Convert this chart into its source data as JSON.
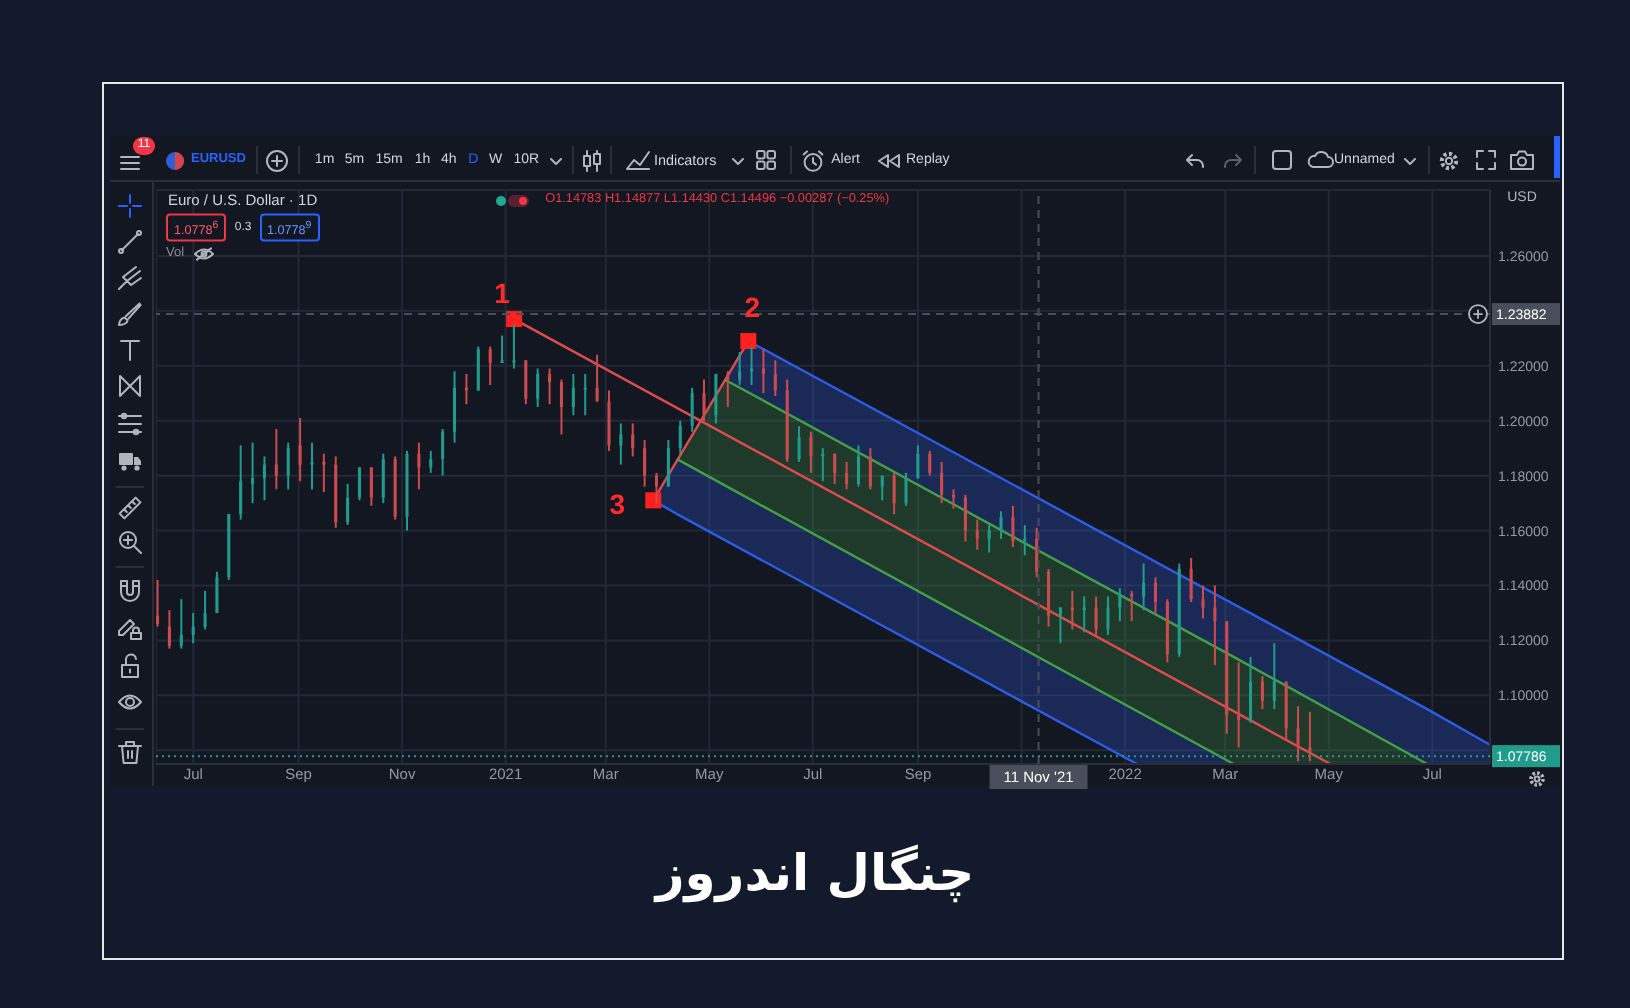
{
  "chart_data": {
    "type": "candlestick",
    "title": "چنگال اندروز",
    "subtitle": "Euro / U.S. Dollar · 1D",
    "ylabel": "USD",
    "x": [
      "2020-06-10",
      "2020-06-17",
      "2020-06-24",
      "2020-07-01",
      "2020-07-08",
      "2020-07-15",
      "2020-07-22",
      "2020-07-29",
      "2020-08-05",
      "2020-08-12",
      "2020-08-19",
      "2020-08-26",
      "2020-09-02",
      "2020-09-09",
      "2020-09-16",
      "2020-09-23",
      "2020-09-30",
      "2020-10-07",
      "2020-10-14",
      "2020-10-21",
      "2020-10-28",
      "2020-11-04",
      "2020-11-11",
      "2020-11-18",
      "2020-11-25",
      "2020-12-02",
      "2020-12-09",
      "2020-12-16",
      "2020-12-23",
      "2020-12-30",
      "2021-01-06",
      "2021-01-13",
      "2021-01-20",
      "2021-01-27",
      "2021-02-03",
      "2021-02-10",
      "2021-02-17",
      "2021-02-24",
      "2021-03-03",
      "2021-03-10",
      "2021-03-17",
      "2021-03-24",
      "2021-03-31",
      "2021-04-07",
      "2021-04-14",
      "2021-04-21",
      "2021-04-28",
      "2021-05-05",
      "2021-05-12",
      "2021-05-19",
      "2021-05-26",
      "2021-06-02",
      "2021-06-09",
      "2021-06-16",
      "2021-06-23",
      "2021-06-30",
      "2021-07-07",
      "2021-07-14",
      "2021-07-21",
      "2021-07-28",
      "2021-08-04",
      "2021-08-11",
      "2021-08-18",
      "2021-08-25",
      "2021-09-01",
      "2021-09-08",
      "2021-09-15",
      "2021-09-22",
      "2021-09-29",
      "2021-10-06",
      "2021-10-13",
      "2021-10-20",
      "2021-10-27",
      "2021-11-03",
      "2021-11-10",
      "2021-11-17",
      "2021-11-24",
      "2021-12-01",
      "2021-12-08",
      "2021-12-15",
      "2021-12-22",
      "2021-12-29",
      "2022-01-05",
      "2022-01-12",
      "2022-01-19",
      "2022-01-26",
      "2022-02-02",
      "2022-02-09",
      "2022-02-16",
      "2022-02-23",
      "2022-03-02",
      "2022-03-09",
      "2022-03-16",
      "2022-03-23",
      "2022-03-30",
      "2022-04-06",
      "2022-04-13",
      "2022-04-20"
    ],
    "ohlc": [
      [
        1.129,
        1.142,
        1.125,
        1.126
      ],
      [
        1.125,
        1.131,
        1.117,
        1.118
      ],
      [
        1.118,
        1.135,
        1.117,
        1.122
      ],
      [
        1.122,
        1.13,
        1.119,
        1.125
      ],
      [
        1.125,
        1.138,
        1.124,
        1.13
      ],
      [
        1.13,
        1.145,
        1.13,
        1.143
      ],
      [
        1.143,
        1.166,
        1.142,
        1.166
      ],
      [
        1.166,
        1.191,
        1.164,
        1.178
      ],
      [
        1.177,
        1.192,
        1.17,
        1.179
      ],
      [
        1.179,
        1.187,
        1.171,
        1.184
      ],
      [
        1.184,
        1.197,
        1.175,
        1.18
      ],
      [
        1.18,
        1.192,
        1.175,
        1.19
      ],
      [
        1.191,
        1.201,
        1.178,
        1.184
      ],
      [
        1.184,
        1.192,
        1.175,
        1.185
      ],
      [
        1.185,
        1.188,
        1.174,
        1.184
      ],
      [
        1.184,
        1.187,
        1.161,
        1.163
      ],
      [
        1.163,
        1.177,
        1.162,
        1.172
      ],
      [
        1.172,
        1.183,
        1.171,
        1.183
      ],
      [
        1.183,
        1.183,
        1.169,
        1.172
      ],
      [
        1.172,
        1.188,
        1.17,
        1.186
      ],
      [
        1.186,
        1.187,
        1.164,
        1.165
      ],
      [
        1.165,
        1.189,
        1.16,
        1.188
      ],
      [
        1.188,
        1.192,
        1.175,
        1.183
      ],
      [
        1.183,
        1.189,
        1.181,
        1.186
      ],
      [
        1.186,
        1.197,
        1.18,
        1.196
      ],
      [
        1.196,
        1.218,
        1.192,
        1.212
      ],
      [
        1.212,
        1.217,
        1.206,
        1.211
      ],
      [
        1.211,
        1.227,
        1.211,
        1.226
      ],
      [
        1.226,
        1.227,
        1.213,
        1.221
      ],
      [
        1.221,
        1.231,
        1.221,
        1.222
      ],
      [
        1.222,
        1.235,
        1.219,
        1.222
      ],
      [
        1.222,
        1.222,
        1.206,
        1.208
      ],
      [
        1.208,
        1.219,
        1.205,
        1.217
      ],
      [
        1.217,
        1.219,
        1.206,
        1.214
      ],
      [
        1.214,
        1.215,
        1.195,
        1.205
      ],
      [
        1.205,
        1.217,
        1.202,
        1.212
      ],
      [
        1.212,
        1.217,
        1.202,
        1.212
      ],
      [
        1.212,
        1.224,
        1.207,
        1.207
      ],
      [
        1.207,
        1.211,
        1.189,
        1.191
      ],
      [
        1.191,
        1.199,
        1.184,
        1.195
      ],
      [
        1.195,
        1.199,
        1.187,
        1.19
      ],
      [
        1.19,
        1.193,
        1.176,
        1.18
      ],
      [
        1.18,
        1.181,
        1.17,
        1.176
      ],
      [
        1.176,
        1.193,
        1.176,
        1.19
      ],
      [
        1.19,
        1.2,
        1.188,
        1.198
      ],
      [
        1.198,
        1.212,
        1.196,
        1.21
      ],
      [
        1.21,
        1.215,
        1.2,
        1.202
      ],
      [
        1.202,
        1.217,
        1.199,
        1.217
      ],
      [
        1.217,
        1.218,
        1.205,
        1.215
      ],
      [
        1.215,
        1.225,
        1.213,
        1.218
      ],
      [
        1.218,
        1.227,
        1.213,
        1.219
      ],
      [
        1.219,
        1.226,
        1.21,
        1.217
      ],
      [
        1.217,
        1.222,
        1.209,
        1.211
      ],
      [
        1.211,
        1.215,
        1.185,
        1.186
      ],
      [
        1.186,
        1.198,
        1.185,
        1.194
      ],
      [
        1.194,
        1.196,
        1.181,
        1.187
      ],
      [
        1.187,
        1.19,
        1.178,
        1.188
      ],
      [
        1.188,
        1.188,
        1.177,
        1.181
      ],
      [
        1.181,
        1.185,
        1.175,
        1.177
      ],
      [
        1.177,
        1.191,
        1.176,
        1.187
      ],
      [
        1.187,
        1.19,
        1.175,
        1.176
      ],
      [
        1.176,
        1.18,
        1.171,
        1.18
      ],
      [
        1.18,
        1.181,
        1.166,
        1.17
      ],
      [
        1.17,
        1.181,
        1.169,
        1.179
      ],
      [
        1.179,
        1.191,
        1.179,
        1.188
      ],
      [
        1.188,
        1.189,
        1.18,
        1.181
      ],
      [
        1.181,
        1.185,
        1.17,
        1.173
      ],
      [
        1.173,
        1.175,
        1.168,
        1.172
      ],
      [
        1.172,
        1.173,
        1.156,
        1.16
      ],
      [
        1.16,
        1.164,
        1.153,
        1.157
      ],
      [
        1.157,
        1.162,
        1.152,
        1.16
      ],
      [
        1.16,
        1.167,
        1.157,
        1.165
      ],
      [
        1.165,
        1.169,
        1.154,
        1.156
      ],
      [
        1.156,
        1.162,
        1.151,
        1.157
      ],
      [
        1.157,
        1.161,
        1.143,
        1.145
      ],
      [
        1.145,
        1.146,
        1.125,
        1.129
      ],
      [
        1.129,
        1.132,
        1.119,
        1.132
      ],
      [
        1.132,
        1.138,
        1.124,
        1.131
      ],
      [
        1.131,
        1.136,
        1.123,
        1.132
      ],
      [
        1.132,
        1.136,
        1.122,
        1.124
      ],
      [
        1.124,
        1.136,
        1.122,
        1.132
      ],
      [
        1.132,
        1.139,
        1.127,
        1.137
      ],
      [
        1.137,
        1.138,
        1.127,
        1.136
      ],
      [
        1.136,
        1.148,
        1.131,
        1.141
      ],
      [
        1.141,
        1.143,
        1.13,
        1.134
      ],
      [
        1.134,
        1.135,
        1.112,
        1.115
      ],
      [
        1.115,
        1.148,
        1.114,
        1.146
      ],
      [
        1.146,
        1.15,
        1.134,
        1.135
      ],
      [
        1.135,
        1.14,
        1.128,
        1.132
      ],
      [
        1.132,
        1.14,
        1.111,
        1.127
      ],
      [
        1.127,
        1.127,
        1.086,
        1.093
      ],
      [
        1.093,
        1.112,
        1.081,
        1.091
      ],
      [
        1.091,
        1.114,
        1.09,
        1.105
      ],
      [
        1.105,
        1.107,
        1.095,
        1.098
      ],
      [
        1.098,
        1.119,
        1.095,
        1.105
      ],
      [
        1.105,
        1.105,
        1.084,
        1.088
      ],
      [
        1.088,
        1.096,
        1.076,
        1.081
      ],
      [
        1.081,
        1.094,
        1.076,
        1.079
      ]
    ],
    "colors": [
      "#cc4b4f",
      "#cc4b4f",
      "#1f9c8c",
      "#1f9c8c",
      "#1f9c8c",
      "#1f9c8c",
      "#1f9c8c",
      "#1f9c8c",
      "#1f9c8c",
      "#1f9c8c",
      "#cc4b4f",
      "#1f9c8c",
      "#cc4b4f",
      "#1f9c8c",
      "#cc4b4f",
      "#cc4b4f",
      "#1f9c8c",
      "#1f9c8c",
      "#cc4b4f",
      "#1f9c8c",
      "#cc4b4f",
      "#1f9c8c",
      "#cc4b4f",
      "#1f9c8c",
      "#1f9c8c",
      "#1f9c8c",
      "#cc4b4f",
      "#1f9c8c",
      "#cc4b4f",
      "#1f9c8c",
      "#1f9c8c",
      "#cc4b4f",
      "#1f9c8c",
      "#cc4b4f",
      "#cc4b4f",
      "#1f9c8c",
      "#1f9c8c",
      "#cc4b4f",
      "#cc4b4f",
      "#1f9c8c",
      "#cc4b4f",
      "#cc4b4f",
      "#cc4b4f",
      "#1f9c8c",
      "#1f9c8c",
      "#1f9c8c",
      "#cc4b4f",
      "#1f9c8c",
      "#cc4b4f",
      "#1f9c8c",
      "#1f9c8c",
      "#cc4b4f",
      "#cc4b4f",
      "#cc4b4f",
      "#1f9c8c",
      "#cc4b4f",
      "#1f9c8c",
      "#cc4b4f",
      "#cc4b4f",
      "#1f9c8c",
      "#cc4b4f",
      "#1f9c8c",
      "#cc4b4f",
      "#1f9c8c",
      "#1f9c8c",
      "#cc4b4f",
      "#cc4b4f",
      "#cc4b4f",
      "#cc4b4f",
      "#cc4b4f",
      "#1f9c8c",
      "#1f9c8c",
      "#cc4b4f",
      "#1f9c8c",
      "#cc4b4f",
      "#cc4b4f",
      "#1f9c8c",
      "#cc4b4f",
      "#1f9c8c",
      "#cc4b4f",
      "#1f9c8c",
      "#1f9c8c",
      "#cc4b4f",
      "#1f9c8c",
      "#cc4b4f",
      "#cc4b4f",
      "#1f9c8c",
      "#cc4b4f",
      "#cc4b4f",
      "#cc4b4f",
      "#cc4b4f",
      "#cc4b4f",
      "#1f9c8c",
      "#cc4b4f",
      "#1f9c8c",
      "#cc4b4f",
      "#cc4b4f",
      "#cc4b4f"
    ],
    "series": [
      {
        "type": "line",
        "color": "#e04b4f",
        "x": [
          "2021-01-06",
          "2022-05-02"
        ],
        "values": [
          1.237,
          1.075
        ]
      },
      {
        "type": "line",
        "color": "#e04b4f",
        "x": [
          "2021-03-29",
          "2021-05-24"
        ],
        "values": [
          1.171,
          1.229
        ]
      },
      {
        "type": "line",
        "color": "#2d5ce6",
        "x": [
          "2021-05-10",
          "2021-05-24",
          "2022-06-28",
          "2022-08-04"
        ],
        "values": [
          null,
          1.229,
          1.095,
          1.082
        ],
        "upper": [
          1.215,
          1.229,
          1.095,
          1.082
        ],
        "lower": [
          1.215,
          1.21,
          1.075,
          1.075
        ]
      },
      {
        "type": "line",
        "color": "#2d5ce6",
        "x": [
          "2021-03-29",
          "2021-04-12",
          "2022-01-08",
          "2022-03-06"
        ],
        "values": [
          1.171,
          1.166,
          1.075,
          null
        ],
        "upper": [
          1.171,
          1.186,
          1.094,
          1.075
        ],
        "lower": [
          1.171,
          1.166,
          1.075,
          1.075
        ]
      },
      {
        "type": "line",
        "color": "#43a047",
        "x": [
          "2021-04-12",
          "2021-05-10",
          "2022-03-06",
          "2022-06-28"
        ],
        "values": [
          null,
          1.215,
          1.114,
          1.075
        ],
        "upper": [
          1.186,
          1.215,
          1.114,
          1.075
        ],
        "lower": [
          1.186,
          1.176,
          1.075,
          1.075
        ]
      },
      {
        "type": "line",
        "color": "#43a047",
        "x": [
          "2021-04-12",
          "2022-03-06"
        ],
        "values": [
          1.186,
          1.075
        ]
      },
      {
        "type": "scatter",
        "color": "#ff2020",
        "marker": "square",
        "x": [
          "2021-01-06",
          "2021-05-24",
          "2021-03-29"
        ],
        "values": [
          1.237,
          1.229,
          1.171
        ]
      }
    ],
    "xlim": [
      "2020-06-09",
      "2022-08-04"
    ],
    "ylim": [
      1.075,
      1.284
    ],
    "xticks": [
      {
        "value": "2020-07-01",
        "label": "Jul"
      },
      {
        "value": "2020-09-01",
        "label": "Sep"
      },
      {
        "value": "2020-11-01",
        "label": "Nov"
      },
      {
        "value": "2021-01-01",
        "label": "2021"
      },
      {
        "value": "2021-03-01",
        "label": "Mar"
      },
      {
        "value": "2021-05-01",
        "label": "May"
      },
      {
        "value": "2021-07-01",
        "label": "Jul"
      },
      {
        "value": "2021-09-01",
        "label": "Sep"
      },
      {
        "value": "2021-11-01",
        "label": null
      },
      {
        "value": "2022-01-01",
        "label": "2022"
      },
      {
        "value": "2022-03-01",
        "label": "Mar"
      },
      {
        "value": "2022-05-01",
        "label": "May"
      },
      {
        "value": "2022-07-01",
        "label": "Jul"
      }
    ],
    "yticks": [
      {
        "value": 1.26,
        "label": "1.26000"
      },
      {
        "value": 1.24,
        "label": null
      },
      {
        "value": 1.22,
        "label": "1.22000"
      },
      {
        "value": 1.2,
        "label": "1.20000"
      },
      {
        "value": 1.18,
        "label": "1.18000"
      },
      {
        "value": 1.16,
        "label": "1.16000"
      },
      {
        "value": 1.14,
        "label": "1.14000"
      },
      {
        "value": 1.12,
        "label": "1.12000"
      },
      {
        "value": 1.1,
        "label": "1.10000"
      },
      {
        "value": 1.08,
        "label": null
      }
    ],
    "grid": true,
    "ref_lines": [
      {
        "axis": "y",
        "value": 1.23882,
        "label": "1.23882",
        "color": "#4a4e5a",
        "line_style": "dashed"
      },
      {
        "axis": "x",
        "value": "2021-11-11",
        "label": "11 Nov '21",
        "color": "#4a4e5a",
        "line_style": "dashed"
      },
      {
        "axis": "y",
        "value": 1.07786,
        "label": "1.07786",
        "color": "#1f9c8c",
        "line_style": "dotted"
      }
    ],
    "annotations": [
      "11",
      "EURUSD",
      "1m",
      "5m",
      "15m",
      "1h",
      "4h",
      "D",
      "W",
      "10R",
      "Indicators",
      "Alert",
      "Replay",
      "Unnamed",
      "O1.14783 H1.14877 L1.14430 C1.14496 −0.00287 (−0.25%)",
      "1.0778$^{6}$",
      "0.3",
      "1.0778$^{9}$",
      "Vol",
      {
        "text": "1",
        "x": "2021-01-06",
        "y": 1.237
      },
      {
        "text": "2",
        "x": "2021-05-24",
        "y": 1.229
      },
      {
        "text": "3",
        "x": "2021-03-29",
        "y": 1.171
      }
    ]
  }
}
